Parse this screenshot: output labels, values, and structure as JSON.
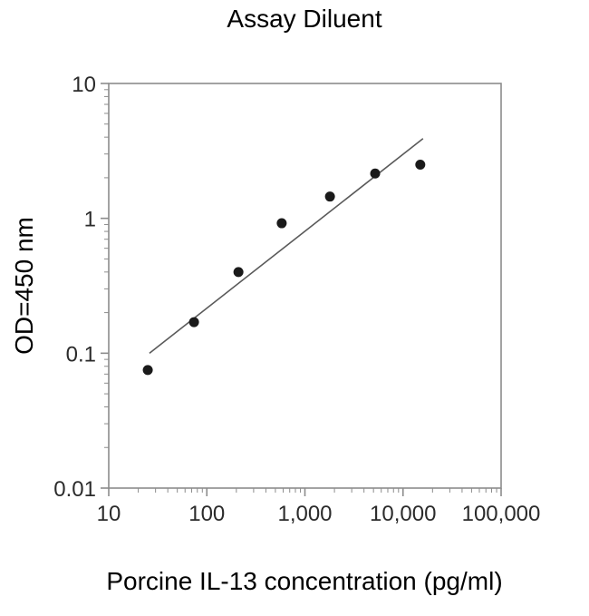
{
  "chart_data": {
    "type": "scatter",
    "title": "Assay Diluent",
    "xlabel": "Porcine IL-13 concentration (pg/ml)",
    "ylabel": "OD=450 nm",
    "x_scale": "log",
    "y_scale": "log",
    "xlim": [
      10,
      100000
    ],
    "ylim": [
      0.01,
      10
    ],
    "x_ticks": [
      {
        "v": 10,
        "label": "10"
      },
      {
        "v": 100,
        "label": "100"
      },
      {
        "v": 1000,
        "label": "1,000"
      },
      {
        "v": 10000,
        "label": "10,000"
      },
      {
        "v": 100000,
        "label": "100,000"
      }
    ],
    "y_ticks": [
      {
        "v": 10,
        "label": "10"
      },
      {
        "v": 1,
        "label": "1"
      },
      {
        "v": 0.1,
        "label": "0.1"
      },
      {
        "v": 0.01,
        "label": "0.01"
      }
    ],
    "points": [
      [
        25,
        0.075
      ],
      [
        74,
        0.17
      ],
      [
        210,
        0.4
      ],
      [
        580,
        0.92
      ],
      [
        1800,
        1.45
      ],
      [
        5200,
        2.15
      ],
      [
        15000,
        2.5
      ]
    ],
    "trend_line": {
      "x1": 26,
      "y1": 0.1,
      "x2": 16000,
      "y2": 3.9
    },
    "legend": null,
    "grid": false,
    "axis_color": "#8c8c8c",
    "text_color": "#2b2b2b",
    "point_color": "#1a1a1a",
    "line_color": "#5a5a5a"
  }
}
